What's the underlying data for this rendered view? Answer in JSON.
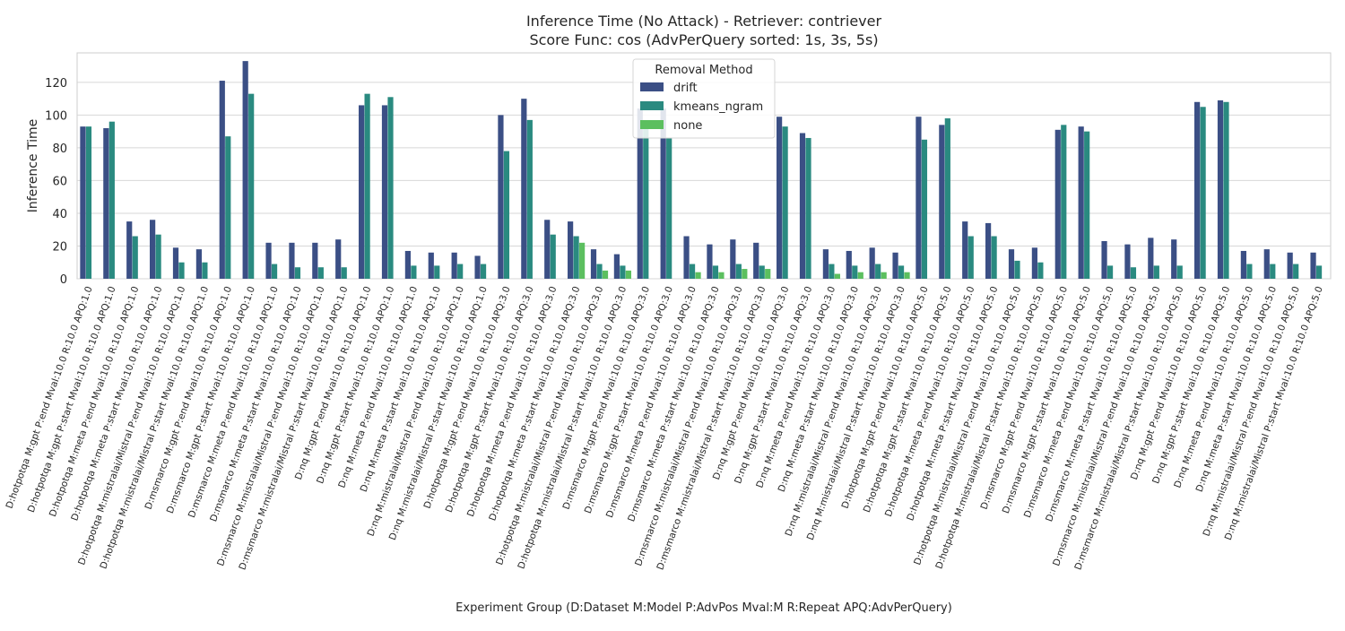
{
  "chart_data": {
    "type": "bar",
    "title_line1": "Inference Time (No Attack) - Retriever: contriever",
    "title_line2": "Score Func: cos (AdvPerQuery sorted: 1s, 3s, 5s)",
    "xlabel": "Experiment Group (D:Dataset M:Model P:AdvPos Mval:M R:Repeat APQ:AdvPerQuery)",
    "ylabel": "Inference Time",
    "ylim": [
      0,
      138
    ],
    "yticks": [
      0,
      20,
      40,
      60,
      80,
      100,
      120
    ],
    "grid": true,
    "legend": {
      "title": "Removal Method",
      "placement": "top-center"
    },
    "categories": [
      "D:hotpotqa M:gpt P:end Mval:10.0 R:10.0 APQ:1.0",
      "D:hotpotqa M:gpt P:start Mval:10.0 R:10.0 APQ:1.0",
      "D:hotpotqa M:meta P:end Mval:10.0 R:10.0 APQ:1.0",
      "D:hotpotqa M:meta P:start Mval:10.0 R:10.0 APQ:1.0",
      "D:hotpotqa M:mistralai/Mistral P:end Mval:10.0 R:10.0 APQ:1.0",
      "D:hotpotqa M:mistralai/Mistral P:start Mval:10.0 R:10.0 APQ:1.0",
      "D:msmarco M:gpt P:end Mval:10.0 R:10.0 APQ:1.0",
      "D:msmarco M:gpt P:start Mval:10.0 R:10.0 APQ:1.0",
      "D:msmarco M:meta P:end Mval:10.0 R:10.0 APQ:1.0",
      "D:msmarco M:meta P:start Mval:10.0 R:10.0 APQ:1.0",
      "D:msmarco M:mistralai/Mistral P:end Mval:10.0 R:10.0 APQ:1.0",
      "D:msmarco M:mistralai/Mistral P:start Mval:10.0 R:10.0 APQ:1.0",
      "D:nq M:gpt P:end Mval:10.0 R:10.0 APQ:1.0",
      "D:nq M:gpt P:start Mval:10.0 R:10.0 APQ:1.0",
      "D:nq M:meta P:end Mval:10.0 R:10.0 APQ:1.0",
      "D:nq M:meta P:start Mval:10.0 R:10.0 APQ:1.0",
      "D:nq M:mistralai/Mistral P:end Mval:10.0 R:10.0 APQ:1.0",
      "D:nq M:mistralai/Mistral P:start Mval:10.0 R:10.0 APQ:1.0",
      "D:hotpotqa M:gpt P:end Mval:10.0 R:10.0 APQ:3.0",
      "D:hotpotqa M:gpt P:start Mval:10.0 R:10.0 APQ:3.0",
      "D:hotpotqa M:meta P:end Mval:10.0 R:10.0 APQ:3.0",
      "D:hotpotqa M:meta P:start Mval:10.0 R:10.0 APQ:3.0",
      "D:hotpotqa M:mistralai/Mistral P:end Mval:10.0 R:10.0 APQ:3.0",
      "D:hotpotqa M:mistralai/Mistral P:start Mval:10.0 R:10.0 APQ:3.0",
      "D:msmarco M:gpt P:end Mval:10.0 R:10.0 APQ:3.0",
      "D:msmarco M:gpt P:start Mval:10.0 R:10.0 APQ:3.0",
      "D:msmarco M:meta P:end Mval:10.0 R:10.0 APQ:3.0",
      "D:msmarco M:meta P:start Mval:10.0 R:10.0 APQ:3.0",
      "D:msmarco M:mistralai/Mistral P:end Mval:10.0 R:10.0 APQ:3.0",
      "D:msmarco M:mistralai/Mistral P:start Mval:10.0 R:10.0 APQ:3.0",
      "D:nq M:gpt P:end Mval:10.0 R:10.0 APQ:3.0",
      "D:nq M:gpt P:start Mval:10.0 R:10.0 APQ:3.0",
      "D:nq M:meta P:end Mval:10.0 R:10.0 APQ:3.0",
      "D:nq M:meta P:start Mval:10.0 R:10.0 APQ:3.0",
      "D:nq M:mistralai/Mistral P:end Mval:10.0 R:10.0 APQ:3.0",
      "D:nq M:mistralai/Mistral P:start Mval:10.0 R:10.0 APQ:3.0",
      "D:hotpotqa M:gpt P:end Mval:10.0 R:10.0 APQ:5.0",
      "D:hotpotqa M:gpt P:start Mval:10.0 R:10.0 APQ:5.0",
      "D:hotpotqa M:meta P:end Mval:10.0 R:10.0 APQ:5.0",
      "D:hotpotqa M:meta P:start Mval:10.0 R:10.0 APQ:5.0",
      "D:hotpotqa M:mistralai/Mistral P:end Mval:10.0 R:10.0 APQ:5.0",
      "D:hotpotqa M:mistralai/Mistral P:start Mval:10.0 R:10.0 APQ:5.0",
      "D:msmarco M:gpt P:end Mval:10.0 R:10.0 APQ:5.0",
      "D:msmarco M:gpt P:start Mval:10.0 R:10.0 APQ:5.0",
      "D:msmarco M:meta P:end Mval:10.0 R:10.0 APQ:5.0",
      "D:msmarco M:meta P:start Mval:10.0 R:10.0 APQ:5.0",
      "D:msmarco M:mistralai/Mistral P:end Mval:10.0 R:10.0 APQ:5.0",
      "D:msmarco M:mistralai/Mistral P:start Mval:10.0 R:10.0 APQ:5.0",
      "D:nq M:gpt P:end Mval:10.0 R:10.0 APQ:5.0",
      "D:nq M:gpt P:start Mval:10.0 R:10.0 APQ:5.0",
      "D:nq M:meta P:end Mval:10.0 R:10.0 APQ:5.0",
      "D:nq M:meta P:start Mval:10.0 R:10.0 APQ:5.0",
      "D:nq M:mistralai/Mistral P:end Mval:10.0 R:10.0 APQ:5.0",
      "D:nq M:mistralai/Mistral P:start Mval:10.0 R:10.0 APQ:5.0"
    ],
    "series": [
      {
        "name": "drift",
        "color": "#3b4f85",
        "values": [
          93,
          92,
          35,
          36,
          19,
          18,
          121,
          133,
          22,
          22,
          22,
          24,
          106,
          106,
          17,
          16,
          16,
          14,
          100,
          110,
          36,
          35,
          18,
          15,
          104,
          104,
          26,
          21,
          24,
          22,
          99,
          89,
          18,
          17,
          19,
          16,
          99,
          94,
          35,
          34,
          18,
          19,
          91,
          93,
          23,
          21,
          25,
          24,
          108,
          109,
          17,
          18,
          16,
          16
        ]
      },
      {
        "name": "kmeans_ngram",
        "color": "#2a8a80",
        "values": [
          93,
          96,
          26,
          27,
          10,
          10,
          87,
          113,
          9,
          7,
          7,
          7,
          113,
          111,
          8,
          8,
          9,
          9,
          78,
          97,
          27,
          26,
          9,
          8,
          95,
          86,
          9,
          8,
          9,
          8,
          93,
          86,
          9,
          8,
          9,
          8,
          85,
          98,
          26,
          26,
          11,
          10,
          94,
          90,
          8,
          7,
          8,
          8,
          105,
          108,
          9,
          9,
          9,
          8
        ]
      },
      {
        "name": "none",
        "color": "#5cbf5f",
        "values": [
          null,
          null,
          null,
          null,
          null,
          null,
          null,
          null,
          null,
          null,
          null,
          null,
          null,
          null,
          null,
          null,
          null,
          null,
          null,
          null,
          null,
          22,
          5,
          5,
          null,
          null,
          4,
          4,
          6,
          6,
          null,
          null,
          3,
          4,
          4,
          4,
          null,
          null,
          null,
          null,
          null,
          null,
          null,
          null,
          null,
          null,
          null,
          null,
          null,
          null,
          null,
          null,
          null,
          null
        ]
      }
    ]
  }
}
